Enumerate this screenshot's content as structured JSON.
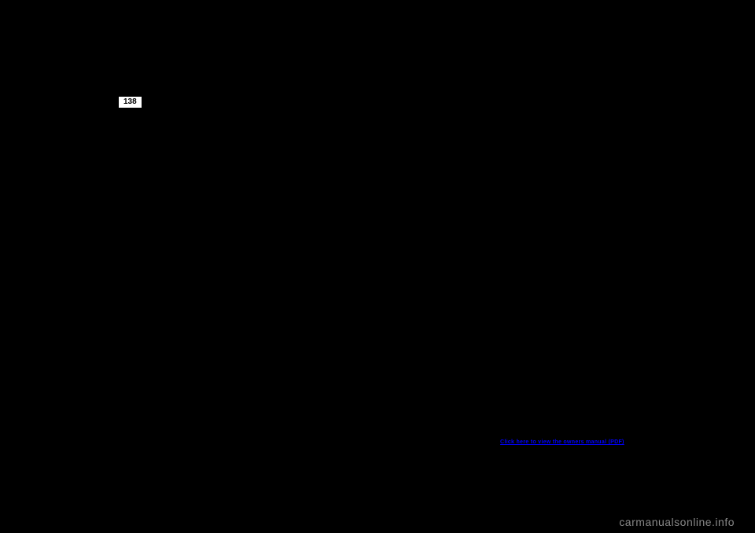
{
  "page": {
    "number": "138",
    "background_color": "#000000"
  },
  "link": {
    "text": "Click here to view the owners manual (PDF)",
    "color": "#0000ff"
  },
  "watermark": {
    "text": "carmanualsonline.info",
    "color": "#888888"
  }
}
